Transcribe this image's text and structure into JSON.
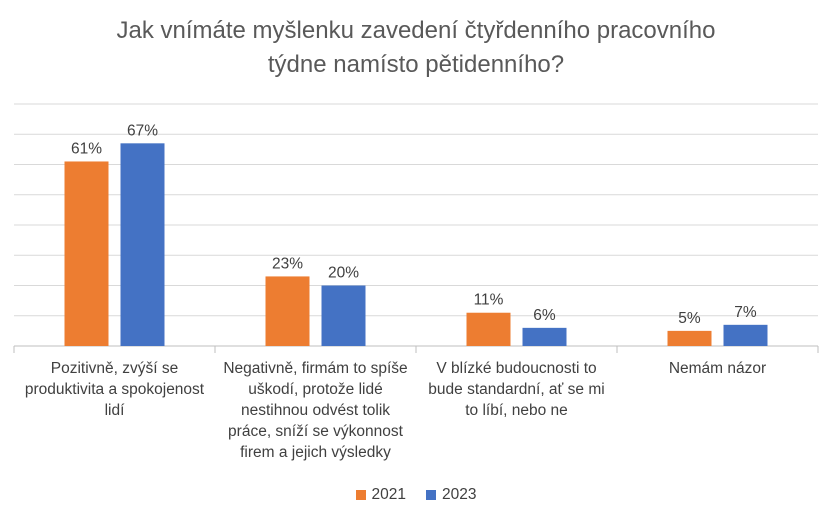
{
  "chart_data": {
    "type": "bar",
    "title_lines": [
      "Jak vnímáte myšlenku zavedení čtyřdenního pracovního",
      "týdne namísto pětidenního?"
    ],
    "categories": [
      [
        "Pozitivně, zvýší se",
        "produktivita a spokojenost",
        "lidí"
      ],
      [
        "Negativně, firmám to spíše",
        "uškodí, protože lidé",
        "nestihnou odvést tolik",
        "práce, sníží se výkonnost",
        "firem a jejich výsledky"
      ],
      [
        "V blízké budoucnosti to",
        "bude standardní, ať se mi",
        "to líbí, nebo ne"
      ],
      [
        "Nemám názor"
      ]
    ],
    "series": [
      {
        "name": "2021",
        "color": "#ED7D31",
        "values": [
          61,
          23,
          11,
          5
        ],
        "labels": [
          "61%",
          "23%",
          "11%",
          "5%"
        ]
      },
      {
        "name": "2023",
        "color": "#4472C4",
        "values": [
          67,
          20,
          6,
          7
        ],
        "labels": [
          "67%",
          "20%",
          "6%",
          "7%"
        ]
      }
    ],
    "ylim": [
      0,
      80
    ],
    "grid": true,
    "legend_position": "bottom"
  }
}
